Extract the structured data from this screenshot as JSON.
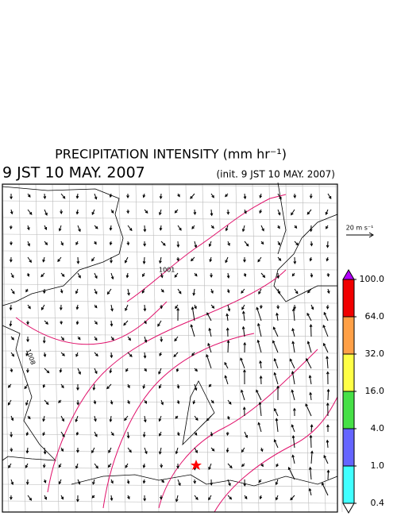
{
  "header": {
    "title": "PRECIPITATION INTENSITY (mm hr⁻¹)",
    "valid_time": "9 JST 10 MAY. 2007",
    "init_time": "(init. 9 JST 10 MAY. 2007)"
  },
  "map": {
    "wind_scale": "20 m s⁻¹",
    "contour_labels": [
      "1001",
      "1008"
    ]
  },
  "colorbar": {
    "levels": [
      {
        "value": 0.4,
        "label": "0.4"
      },
      {
        "value": 1,
        "label": "1.0"
      },
      {
        "value": 4,
        "label": "4.0"
      },
      {
        "value": 16,
        "label": "16.0"
      },
      {
        "value": 32,
        "label": "32.0"
      },
      {
        "value": 64,
        "label": "64.0"
      },
      {
        "value": 100,
        "label": "100.0"
      }
    ],
    "colors": [
      "#ffffff",
      "#40ffff",
      "#6464ff",
      "#46e046",
      "#ffff46",
      "#ffa046",
      "#f00000",
      "#b400ff"
    ]
  }
}
